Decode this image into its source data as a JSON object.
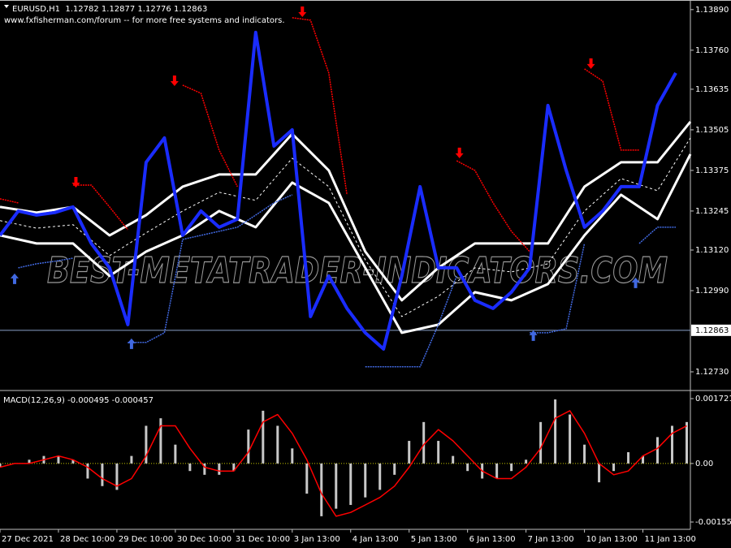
{
  "chart_data": [
    {
      "type": "line",
      "title": "EURUSD,H1  1.12782 1.12877 1.12776 1.12863",
      "subtitle": "www.fxfisherman.com/forum -- for more free systems and indicators.",
      "watermark": "BEST-METATRADER-INDICATORS.COM",
      "xlim": [
        0,
        189
      ],
      "ylim": [
        1.12678,
        1.13913
      ],
      "yticks": [
        {
          "value": 1.1389,
          "label": "1.13890"
        },
        {
          "value": 1.1376,
          "label": "1.13760"
        },
        1.13635,
        1.13505,
        1.13375,
        1.13245,
        {
          "value": 1.1312,
          "label": "1.13120"
        },
        {
          "value": 1.1299,
          "label": "1.12990"
        },
        {
          "value": 1.1273,
          "label": "1.12730"
        }
      ],
      "last_price": {
        "value": 1.12863,
        "label": "1.12863"
      },
      "x": [
        0,
        5,
        10,
        15,
        20,
        25,
        30,
        35,
        40,
        45,
        50,
        55,
        60,
        65,
        70,
        75,
        80,
        85,
        90,
        95,
        100,
        105,
        110,
        115,
        120,
        125,
        130,
        135,
        140,
        145,
        150,
        155,
        160,
        165,
        170,
        175,
        180,
        185
      ],
      "series": [
        {
          "style": "solid",
          "width": 3,
          "color": "#ffffff",
          "x": [
            0,
            10,
            20,
            30,
            40,
            50,
            60,
            70,
            80,
            90,
            100,
            110,
            120,
            130,
            140,
            150,
            160,
            170,
            180,
            189
          ],
          "values": [
            1.13258,
            1.1324,
            1.13258,
            1.13167,
            1.13232,
            1.13323,
            1.13362,
            1.13362,
            1.13492,
            1.13375,
            1.13115,
            1.12959,
            1.13063,
            1.13141,
            1.13141,
            1.13141,
            1.13323,
            1.13401,
            1.13401,
            1.13531
          ]
        },
        {
          "style": "dashed",
          "width": 1,
          "color": "#ffffff",
          "x": [
            0,
            10,
            20,
            30,
            40,
            50,
            60,
            70,
            80,
            90,
            100,
            110,
            120,
            130,
            140,
            150,
            160,
            170,
            180,
            189
          ],
          "values": [
            1.13214,
            1.1319,
            1.13201,
            1.13102,
            1.13175,
            1.13245,
            1.13305,
            1.13279,
            1.13414,
            1.13323,
            1.13089,
            1.12907,
            1.12972,
            1.13063,
            1.1305,
            1.13076,
            1.13245,
            1.13349,
            1.1331,
            1.13479
          ]
        },
        {
          "style": "solid",
          "width": 3,
          "color": "#ffffff",
          "x": [
            0,
            10,
            20,
            30,
            40,
            50,
            60,
            70,
            80,
            90,
            100,
            110,
            120,
            130,
            140,
            150,
            160,
            170,
            180,
            189
          ],
          "values": [
            1.13167,
            1.13141,
            1.13141,
            1.13037,
            1.13115,
            1.13167,
            1.13245,
            1.13193,
            1.13336,
            1.13271,
            1.13063,
            1.12855,
            1.12881,
            1.12985,
            1.12959,
            1.13011,
            1.13167,
            1.13297,
            1.13219,
            1.13427
          ]
        },
        {
          "style": "dotted",
          "width": 1.5,
          "color": "#ff0000",
          "values": [
            1.13284,
            1.13271,
            null,
            null,
            1.13328,
            1.13328,
            1.13258,
            1.13185,
            null,
            null,
            1.13648,
            1.13622,
            1.1344,
            1.13323,
            null,
            null,
            1.13864,
            1.13856,
            1.13687,
            1.13297,
            null,
            null,
            null,
            null,
            null,
            1.13406,
            1.13375,
            1.13271,
            1.1318,
            1.13115,
            null,
            null,
            1.137,
            1.13661,
            1.1344,
            1.1344,
            null,
            null
          ]
        },
        {
          "style": "dotted",
          "width": 1.5,
          "color": "#4169e1",
          "values": [
            null,
            1.13063,
            1.13076,
            1.13084,
            1.13094,
            null,
            null,
            1.12824,
            1.12824,
            1.12855,
            1.13154,
            1.13167,
            1.1318,
            1.13193,
            1.13232,
            1.13271,
            1.13297,
            null,
            null,
            null,
            1.12746,
            1.12746,
            1.12746,
            1.12746,
            1.12881,
            1.13037,
            null,
            null,
            null,
            1.12855,
            1.12855,
            1.12868,
            1.13141,
            null,
            null,
            1.13141,
            1.13193,
            1.13193
          ]
        },
        {
          "style": "solid",
          "width": 4,
          "color": "#1a2cff",
          "values": [
            1.13167,
            1.13245,
            1.13232,
            1.1324,
            1.13258,
            1.13141,
            1.13063,
            1.12881,
            1.13401,
            1.13479,
            1.13167,
            1.13245,
            1.13193,
            1.13219,
            1.13817,
            1.13453,
            1.13505,
            1.12907,
            1.13037,
            1.12933,
            1.12855,
            1.12803,
            1.13037,
            1.13323,
            1.13063,
            1.13063,
            1.12959,
            1.12933,
            1.12985,
            1.13063,
            1.13583,
            1.13375,
            1.13193,
            1.13245,
            1.13323,
            1.13323,
            1.13583,
            1.13687
          ]
        }
      ],
      "markers": [
        {
          "symbol": "down-arrow",
          "color": "#ff0000",
          "x": [
            21,
            48,
            83,
            126,
            162
          ],
          "values": [
            1.13328,
            1.13653,
            1.13874,
            1.13422,
            1.13708
          ]
        },
        {
          "symbol": "up-arrow",
          "color": "#4169e1",
          "x": [
            4,
            36,
            146,
            174
          ],
          "values": [
            1.13037,
            1.12829,
            1.12855,
            1.13024
          ]
        }
      ]
    },
    {
      "type": "bar",
      "title": "MACD(12,26,9) -0.000495 -0.000457",
      "xlim": [
        0,
        189
      ],
      "ylim": [
        -0.001747,
        0.001872
      ],
      "yticks": [
        0.001721,
        {
          "value": 0,
          "label": "0.00"
        },
        -0.001553
      ],
      "xticks": [
        {
          "value": 0,
          "label": "27 Dec 2021"
        },
        {
          "value": 16,
          "label": "28 Dec 10:00"
        },
        {
          "value": 32,
          "label": "29 Dec 10:00"
        },
        {
          "value": 48,
          "label": "30 Dec 10:00"
        },
        {
          "value": 64,
          "label": "31 Dec 10:00"
        },
        {
          "value": 80,
          "label": "3 Jan 13:00"
        },
        {
          "value": 96,
          "label": "4 Jan 13:00"
        },
        {
          "value": 112,
          "label": "5 Jan 13:00"
        },
        {
          "value": 128,
          "label": "6 Jan 13:00"
        },
        {
          "value": 144,
          "label": "7 Jan 13:00"
        },
        {
          "value": 160,
          "label": "10 Jan 13:00"
        },
        {
          "value": 176,
          "label": "11 Jan 13:00"
        }
      ],
      "zero_line_color": "#c8c800",
      "x": [
        0,
        4,
        8,
        12,
        16,
        20,
        24,
        28,
        32,
        36,
        40,
        44,
        48,
        52,
        56,
        60,
        64,
        68,
        72,
        76,
        80,
        84,
        88,
        92,
        96,
        100,
        104,
        108,
        112,
        116,
        120,
        124,
        128,
        132,
        136,
        140,
        144,
        148,
        152,
        156,
        160,
        164,
        168,
        172,
        176,
        180,
        184,
        188
      ],
      "series": [
        {
          "style": "bar",
          "color": "#c8c8c8",
          "values": [
            -0.0001,
            0,
            0.0001,
            0.0002,
            0.0002,
            0.0001,
            -0.0004,
            -0.0006,
            -0.0007,
            0.0002,
            0.001,
            0.0012,
            0.0005,
            -0.0002,
            -0.0003,
            -0.0003,
            -0.0002,
            0.0009,
            0.0014,
            0.001,
            0.0004,
            -0.0008,
            -0.0014,
            -0.0012,
            -0.0011,
            -0.0009,
            -0.0007,
            -0.0003,
            0.0006,
            0.0011,
            0.0006,
            0.0002,
            -0.0002,
            -0.0004,
            -0.0004,
            -0.0002,
            0.0001,
            0.0011,
            0.0017,
            0.0013,
            0.0005,
            -0.0005,
            -0.0002,
            0.0003,
            0.0002,
            0.0007,
            0.001,
            0.0011
          ]
        },
        {
          "style": "line",
          "color": "#ff0000",
          "values": [
            -0.0001,
            0,
            0,
            0.0001,
            0.0002,
            0.0001,
            -0.0001,
            -0.0004,
            -0.0006,
            -0.0004,
            0.0002,
            0.001,
            0.001,
            0.0004,
            -0.0001,
            -0.0002,
            -0.0002,
            0.0003,
            0.0011,
            0.0013,
            0.0008,
            0.0001,
            -0.0008,
            -0.0014,
            -0.0013,
            -0.0011,
            -0.0009,
            -0.0006,
            -0.0001,
            0.0005,
            0.0009,
            0.0006,
            0.0002,
            -0.0002,
            -0.0004,
            -0.0004,
            -0.0001,
            0.0004,
            0.0012,
            0.0014,
            0.0008,
            0,
            -0.0003,
            -0.0002,
            0.0002,
            0.0004,
            0.0008,
            0.001
          ]
        }
      ]
    }
  ]
}
